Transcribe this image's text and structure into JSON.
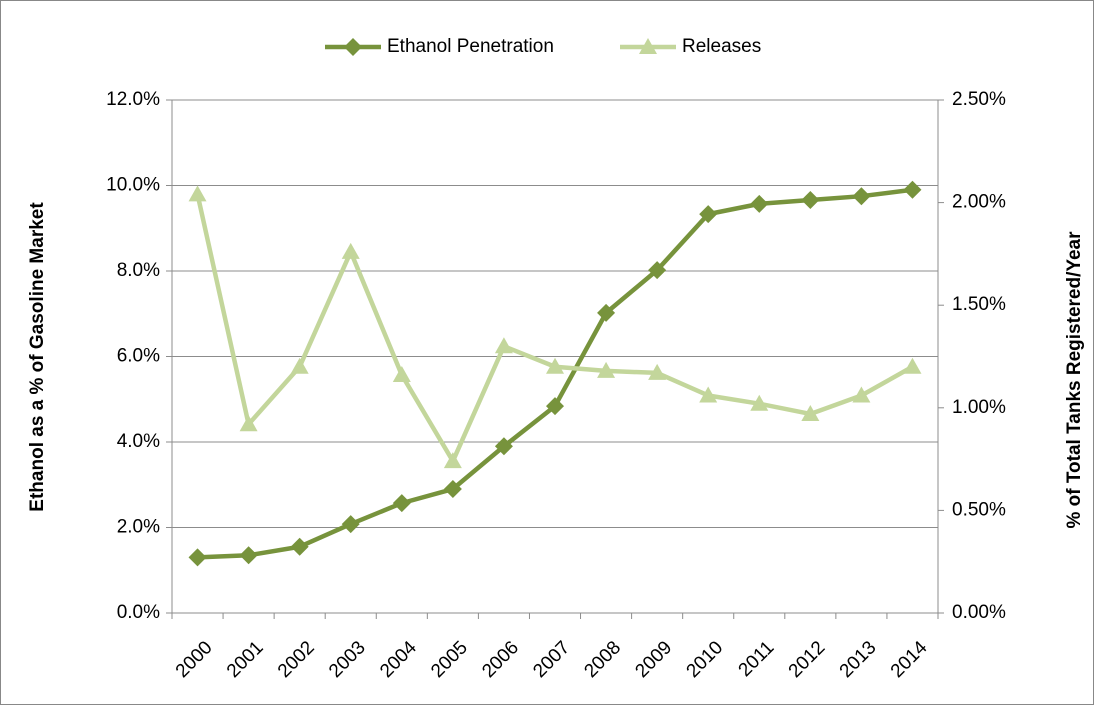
{
  "chart_data": {
    "type": "line",
    "categories": [
      "2000",
      "2001",
      "2002",
      "2003",
      "2004",
      "2005",
      "2006",
      "2007",
      "2008",
      "2009",
      "2010",
      "2011",
      "2012",
      "2013",
      "2014"
    ],
    "series": [
      {
        "name": "Ethanol Penetration",
        "color": "#77933c",
        "marker": "diamond",
        "values": [
          1.3,
          1.35,
          1.55,
          2.08,
          2.57,
          2.9,
          3.9,
          4.84,
          7.02,
          8.02,
          9.33,
          9.57,
          9.66,
          9.75,
          9.9
        ]
      },
      {
        "name": "Releases",
        "color": "#c3d69b",
        "marker": "triangle",
        "axis": "y2",
        "values": [
          2.04,
          0.92,
          1.2,
          1.76,
          1.16,
          0.74,
          1.3,
          1.2,
          1.18,
          1.17,
          1.06,
          1.02,
          0.97,
          1.06,
          1.2
        ]
      }
    ],
    "ylabel": "Ethanol as a % of Gasoline Market",
    "y2label": "% of Total Tanks Registered/Year",
    "ylim": [
      0,
      12
    ],
    "yticks": [
      {
        "value": 0,
        "label": "0.0%"
      },
      {
        "value": 2,
        "label": "2.0%"
      },
      {
        "value": 4,
        "label": "4.0%"
      },
      {
        "value": 6,
        "label": "6.0%"
      },
      {
        "value": 8,
        "label": "8.0%"
      },
      {
        "value": 10,
        "label": "10.0%"
      },
      {
        "value": 12,
        "label": "12.0%"
      }
    ],
    "y2lim": [
      0,
      2.5
    ],
    "y2ticks": [
      {
        "value": 0,
        "label": "0.00%"
      },
      {
        "value": 0.5,
        "label": "0.50%"
      },
      {
        "value": 1,
        "label": "1.00%"
      },
      {
        "value": 1.5,
        "label": "1.50%"
      },
      {
        "value": 2,
        "label": "2.00%"
      },
      {
        "value": 2.5,
        "label": "2.50%"
      }
    ],
    "grid": true,
    "legend": "top"
  }
}
